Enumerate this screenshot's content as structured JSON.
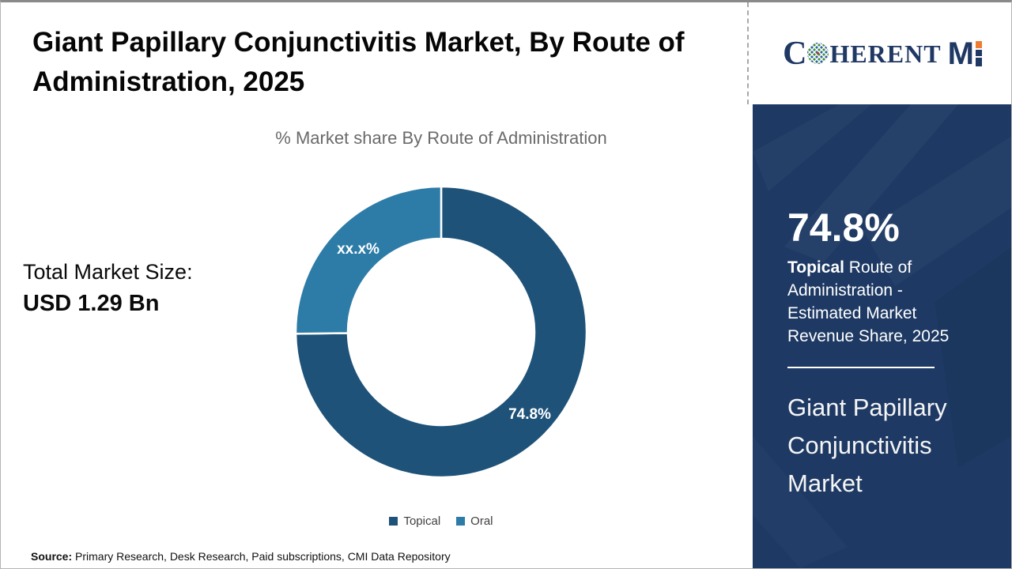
{
  "title": "Giant Papillary Conjunctivitis Market, By Route of Administration, 2025",
  "subtitle": "% Market share By Route of Administration",
  "total_market": {
    "label": "Total Market Size:",
    "value": "USD 1.29 Bn"
  },
  "chart_data": {
    "type": "pie",
    "donut": true,
    "title": "% Market share By Route of Administration",
    "categories": [
      "Topical",
      "Oral"
    ],
    "values": [
      74.8,
      25.2
    ],
    "display_labels": [
      "74.8%",
      "xx.x%"
    ],
    "colors": [
      "#1E5278",
      "#2D7CA7"
    ],
    "start_angle_deg": 0,
    "direction": "clockwise",
    "legend_position": "bottom"
  },
  "legend": [
    {
      "label": "Topical",
      "color": "#1E5278"
    },
    {
      "label": "Oral",
      "color": "#2D7CA7"
    }
  ],
  "source": {
    "label": "Source:",
    "text": " Primary Research, Desk Research, Paid subscriptions, CMI Data Repository"
  },
  "logo": {
    "alt": "CoherentMI",
    "serif_head": "C",
    "serif_tail": "HERENT",
    "bold_m": "M",
    "accent_color": "#ED7D31",
    "navy_color": "#1F3864"
  },
  "sidebar": {
    "bg_color": "#1E3A64",
    "stat_value": "74.8%",
    "stat_label_bold": "Topical",
    "stat_label_rest": " Route of Administration - Estimated Market Revenue Share, 2025",
    "market_name": "Giant Papillary Conjunctivitis Market"
  }
}
